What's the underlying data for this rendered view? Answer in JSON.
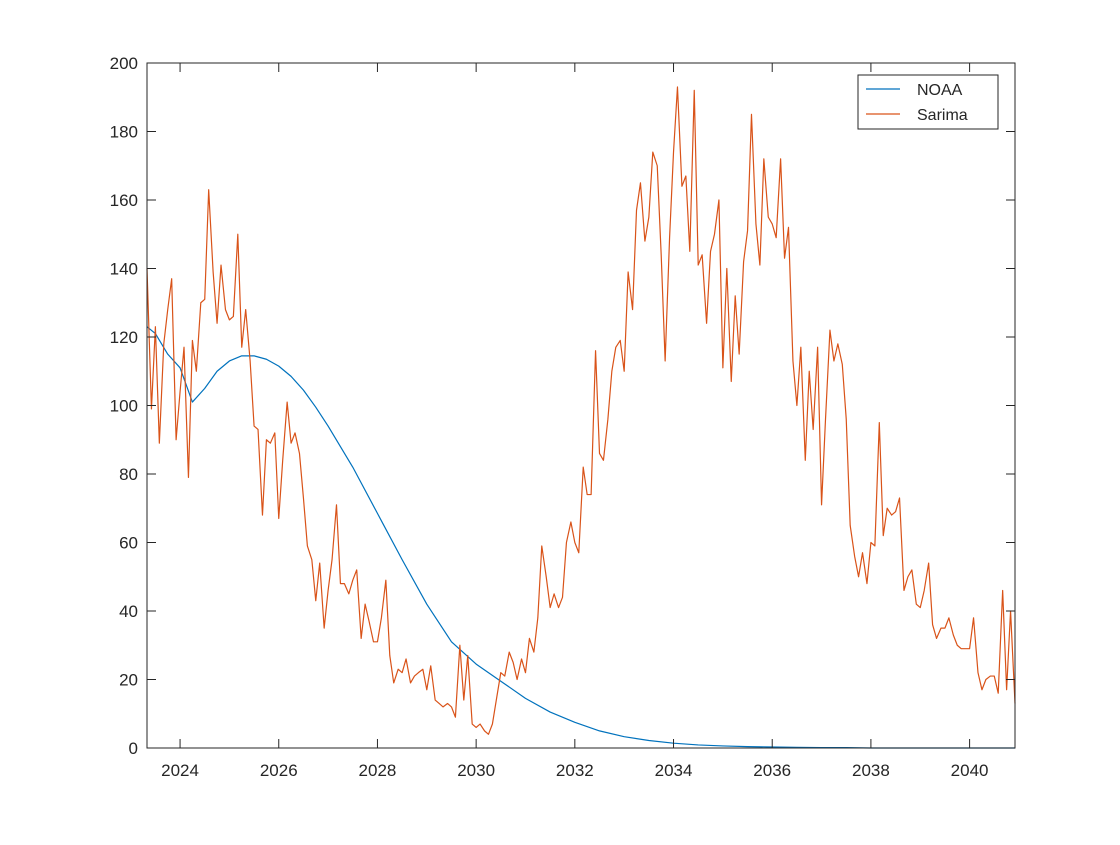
{
  "chart_data": {
    "type": "line",
    "title": "",
    "xlabel": "",
    "ylabel": "",
    "xlim": [
      2023.33,
      2040.92
    ],
    "ylim": [
      0,
      200
    ],
    "xticks": [
      2024,
      2026,
      2028,
      2030,
      2032,
      2034,
      2036,
      2038,
      2040
    ],
    "yticks": [
      0,
      20,
      40,
      60,
      80,
      100,
      120,
      140,
      160,
      180,
      200
    ],
    "grid": false,
    "legend_placement": "top-right",
    "series": [
      {
        "name": "NOAA",
        "color": "#0072BD",
        "x": [
          2023.33,
          2023.5,
          2023.75,
          2024.0,
          2024.25,
          2024.5,
          2024.75,
          2025.0,
          2025.25,
          2025.5,
          2025.75,
          2026.0,
          2026.25,
          2026.5,
          2026.75,
          2027.0,
          2027.5,
          2028.0,
          2028.5,
          2029.0,
          2029.5,
          2030.0,
          2030.5,
          2031.0,
          2031.5,
          2032.0,
          2032.5,
          2033.0,
          2033.5,
          2034.0,
          2034.5,
          2035.0,
          2035.5,
          2036.0,
          2036.5,
          2037.0,
          2037.5,
          2038.0,
          2039.0,
          2040.0,
          2040.92
        ],
        "values": [
          123,
          121,
          115,
          111,
          101,
          105,
          110,
          113,
          114.5,
          114.5,
          113.5,
          111.5,
          108.5,
          104.5,
          99.5,
          94,
          82,
          68.5,
          55,
          42,
          31,
          24.5,
          19.5,
          14.5,
          10.5,
          7.5,
          5,
          3.3,
          2.2,
          1.4,
          0.9,
          0.6,
          0.4,
          0.3,
          0.2,
          0.1,
          0.1,
          0,
          0,
          0,
          0
        ]
      },
      {
        "name": "Sarima",
        "color": "#D95319",
        "x": [
          2023.33,
          2023.42,
          2023.5,
          2023.58,
          2023.67,
          2023.75,
          2023.83,
          2023.92,
          2024.0,
          2024.08,
          2024.17,
          2024.25,
          2024.33,
          2024.42,
          2024.5,
          2024.58,
          2024.67,
          2024.75,
          2024.83,
          2024.92,
          2025.0,
          2025.08,
          2025.17,
          2025.25,
          2025.33,
          2025.42,
          2025.5,
          2025.58,
          2025.67,
          2025.75,
          2025.83,
          2025.92,
          2026.0,
          2026.08,
          2026.17,
          2026.25,
          2026.33,
          2026.42,
          2026.5,
          2026.58,
          2026.67,
          2026.75,
          2026.83,
          2026.92,
          2027.0,
          2027.08,
          2027.17,
          2027.25,
          2027.33,
          2027.42,
          2027.5,
          2027.58,
          2027.67,
          2027.75,
          2027.83,
          2027.92,
          2028.0,
          2028.08,
          2028.17,
          2028.25,
          2028.33,
          2028.42,
          2028.5,
          2028.58,
          2028.67,
          2028.75,
          2028.83,
          2028.92,
          2029.0,
          2029.08,
          2029.17,
          2029.25,
          2029.33,
          2029.42,
          2029.5,
          2029.58,
          2029.67,
          2029.75,
          2029.83,
          2029.92,
          2030.0,
          2030.08,
          2030.17,
          2030.25,
          2030.33,
          2030.42,
          2030.5,
          2030.58,
          2030.67,
          2030.75,
          2030.83,
          2030.92,
          2031.0,
          2031.08,
          2031.17,
          2031.25,
          2031.33,
          2031.42,
          2031.5,
          2031.58,
          2031.67,
          2031.75,
          2031.83,
          2031.92,
          2032.0,
          2032.08,
          2032.17,
          2032.25,
          2032.33,
          2032.42,
          2032.5,
          2032.58,
          2032.67,
          2032.75,
          2032.83,
          2032.92,
          2033.0,
          2033.08,
          2033.17,
          2033.25,
          2033.33,
          2033.42,
          2033.5,
          2033.58,
          2033.67,
          2033.75,
          2033.83,
          2033.92,
          2034.0,
          2034.08,
          2034.17,
          2034.25,
          2034.33,
          2034.42,
          2034.5,
          2034.58,
          2034.67,
          2034.75,
          2034.83,
          2034.92,
          2035.0,
          2035.08,
          2035.17,
          2035.25,
          2035.33,
          2035.42,
          2035.5,
          2035.58,
          2035.67,
          2035.75,
          2035.83,
          2035.92,
          2036.0,
          2036.08,
          2036.17,
          2036.25,
          2036.33,
          2036.42,
          2036.5,
          2036.58,
          2036.67,
          2036.75,
          2036.83,
          2036.92,
          2037.0,
          2037.08,
          2037.17,
          2037.25,
          2037.33,
          2037.42,
          2037.5,
          2037.58,
          2037.67,
          2037.75,
          2037.83,
          2037.92,
          2038.0,
          2038.08,
          2038.17,
          2038.25,
          2038.33,
          2038.42,
          2038.5,
          2038.58,
          2038.67,
          2038.75,
          2038.83,
          2038.92,
          2039.0,
          2039.08,
          2039.17,
          2039.25,
          2039.33,
          2039.42,
          2039.5,
          2039.58,
          2039.67,
          2039.75,
          2039.83,
          2039.92,
          2040.0,
          2040.08,
          2040.17,
          2040.25,
          2040.33,
          2040.42,
          2040.5,
          2040.58,
          2040.67,
          2040.75,
          2040.83,
          2040.92
        ],
        "values": [
          140,
          99,
          123,
          89,
          118,
          128,
          137,
          90,
          104,
          117,
          79,
          119,
          110,
          130,
          131,
          163,
          139,
          124,
          141,
          128,
          125,
          126,
          150,
          117,
          128,
          113,
          94,
          93,
          68,
          90,
          89,
          92,
          67,
          84,
          101,
          89,
          92,
          86,
          73,
          59,
          55,
          43,
          54,
          35,
          46,
          55,
          71,
          48,
          48,
          45,
          49,
          52,
          32,
          42,
          37,
          31,
          31,
          38,
          49,
          27,
          19,
          23,
          22,
          26,
          19,
          21,
          22,
          23,
          17,
          24,
          14,
          13,
          12,
          13,
          12,
          9,
          30,
          14,
          27,
          7,
          6,
          7,
          5,
          4,
          7,
          15,
          22,
          21,
          28,
          25,
          20,
          26,
          22,
          32,
          28,
          38,
          59,
          50,
          41,
          45,
          41,
          44,
          60,
          66,
          60,
          57,
          82,
          74,
          74,
          116,
          86,
          84,
          96,
          110,
          117,
          119,
          110,
          139,
          128,
          157,
          165,
          148,
          155,
          174,
          170,
          144,
          113,
          149,
          174,
          193,
          164,
          167,
          145,
          192,
          141,
          144,
          124,
          145,
          150,
          160,
          111,
          140,
          107,
          132,
          115,
          142,
          151,
          185,
          153,
          141,
          172,
          155,
          153,
          149,
          172,
          143,
          152,
          113,
          100,
          117,
          84,
          110,
          93,
          117,
          71,
          96,
          122,
          113,
          118,
          112,
          96,
          65,
          56,
          50,
          57,
          48,
          60,
          59,
          95,
          62,
          70,
          68,
          69,
          73,
          46,
          50,
          52,
          42,
          41,
          46,
          54,
          36,
          32,
          35,
          35,
          38,
          33,
          30,
          29,
          29,
          29,
          38,
          22,
          17,
          20,
          21,
          21,
          16,
          46,
          17,
          40,
          13
        ]
      }
    ]
  }
}
